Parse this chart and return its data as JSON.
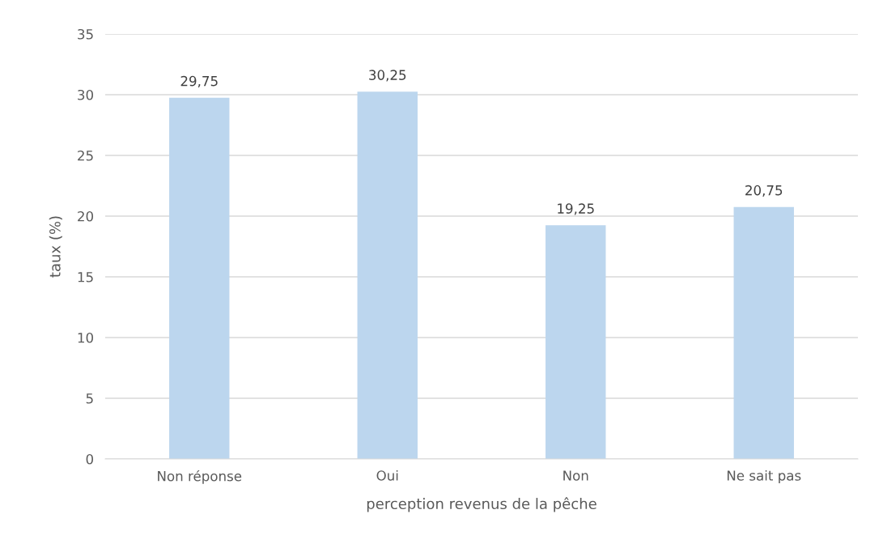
{
  "chart_data": {
    "type": "bar",
    "xlabel": "perception revenus de la pêche",
    "ylabel": "taux (%)",
    "categories": [
      "Non réponse",
      "Oui",
      "Non",
      "Ne sait pas"
    ],
    "values": [
      29.75,
      30.25,
      19.25,
      20.75
    ],
    "value_labels": [
      "29,75",
      "30,25",
      "19,25",
      "20,75"
    ],
    "color": "#bcd6ee",
    "ylim": [
      0,
      35
    ],
    "yticks": [
      0,
      5,
      10,
      15,
      20,
      25,
      30,
      35
    ],
    "grid": "y"
  }
}
